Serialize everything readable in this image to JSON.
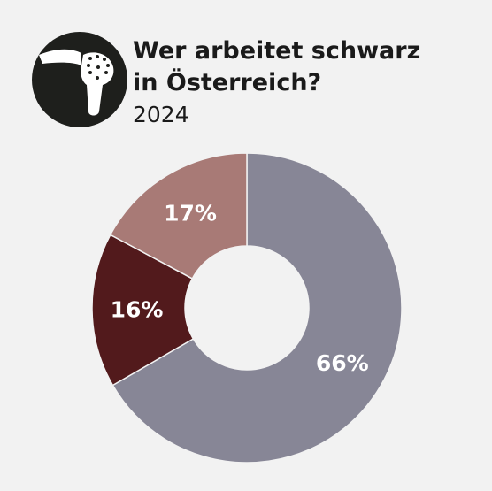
{
  "header": {
    "title_line1": "Wer arbeitet schwarz",
    "title_line2": "in Österreich?",
    "subtitle": "2024",
    "icon": "shower-head-icon"
  },
  "colors": {
    "background": "#f2f2f2",
    "logo_circle": "#1e1f1c",
    "logo_shape": "#ffffff"
  },
  "chart_data": {
    "type": "pie",
    "title": "Wer arbeitet schwarz in Österreich?",
    "subtitle": "2024",
    "donut": true,
    "slices": [
      {
        "label": "66%",
        "value": 66,
        "color": "#878696"
      },
      {
        "label": "16%",
        "value": 16,
        "color": "#521a1c"
      },
      {
        "label": "17%",
        "value": 17,
        "color": "#a87a76"
      }
    ]
  }
}
